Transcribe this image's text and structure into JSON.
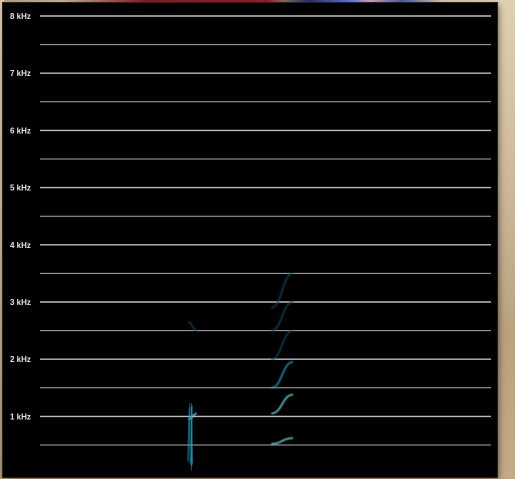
{
  "window": {
    "title": "",
    "background_color": "#000000"
  },
  "spectrogram": {
    "frequency_labels": [
      "8 kHz",
      "7 kHz",
      "6 kHz",
      "5 kHz",
      "4 kHz",
      "3 kHz",
      "2 kHz",
      "1 kHz"
    ],
    "gridline_color": "#c8c8c8",
    "colors": {
      "low": "#0e4a5c",
      "mid": "#1fa3c4",
      "high": "#6fe6f2",
      "peak": "#f2f0a0"
    }
  },
  "chart_data": {
    "type": "heatmap",
    "title": "",
    "xlabel": "",
    "ylabel": "",
    "y_unit": "kHz",
    "ylim": [
      0,
      8
    ],
    "y_ticks": [
      "8 kHz",
      "7 kHz",
      "6 kHz",
      "5 kHz",
      "4 kHz",
      "3 kHz",
      "2 kHz",
      "1 kHz"
    ],
    "grid": true,
    "series": [
      {
        "segments": [
          [
            0.0,
            0.33
          ],
          [
            0.35,
            0.52
          ],
          [
            0.57,
            1.0
          ]
        ],
        "khz": [
          0.1,
          0.1,
          0.1
        ],
        "intensity": "peak"
      },
      {
        "segments": [
          [
            0.0,
            0.33
          ],
          [
            0.35,
            0.52
          ],
          [
            0.57,
            1.0
          ]
        ],
        "khz": [
          0.52,
          0.52,
          0.62
        ],
        "intensity": "high"
      },
      {
        "segments": [
          [
            0.0,
            0.33
          ],
          [
            0.35,
            0.52
          ],
          [
            0.57,
            1.0
          ]
        ],
        "khz": [
          0.95,
          1.05,
          1.38
        ],
        "intensity": "high"
      },
      {
        "segments": [
          [
            0.35,
            0.52
          ],
          [
            0.57,
            1.0
          ]
        ],
        "khz": [
          1.5,
          1.95
        ],
        "intensity": "mid"
      },
      {
        "segments": [
          [
            0.35,
            0.52
          ],
          [
            0.57,
            1.0
          ]
        ],
        "khz": [
          2.0,
          2.5
        ],
        "intensity": "low"
      },
      {
        "segments": [
          [
            0.0,
            0.33
          ],
          [
            0.35,
            0.52
          ],
          [
            0.57,
            1.0
          ]
        ],
        "khz": [
          2.65,
          2.5,
          3.0
        ],
        "intensity": "low"
      },
      {
        "segments": [
          [
            0.38,
            0.52
          ],
          [
            0.57,
            1.0
          ]
        ],
        "khz": [
          2.9,
          3.5
        ],
        "intensity": "low"
      }
    ]
  }
}
